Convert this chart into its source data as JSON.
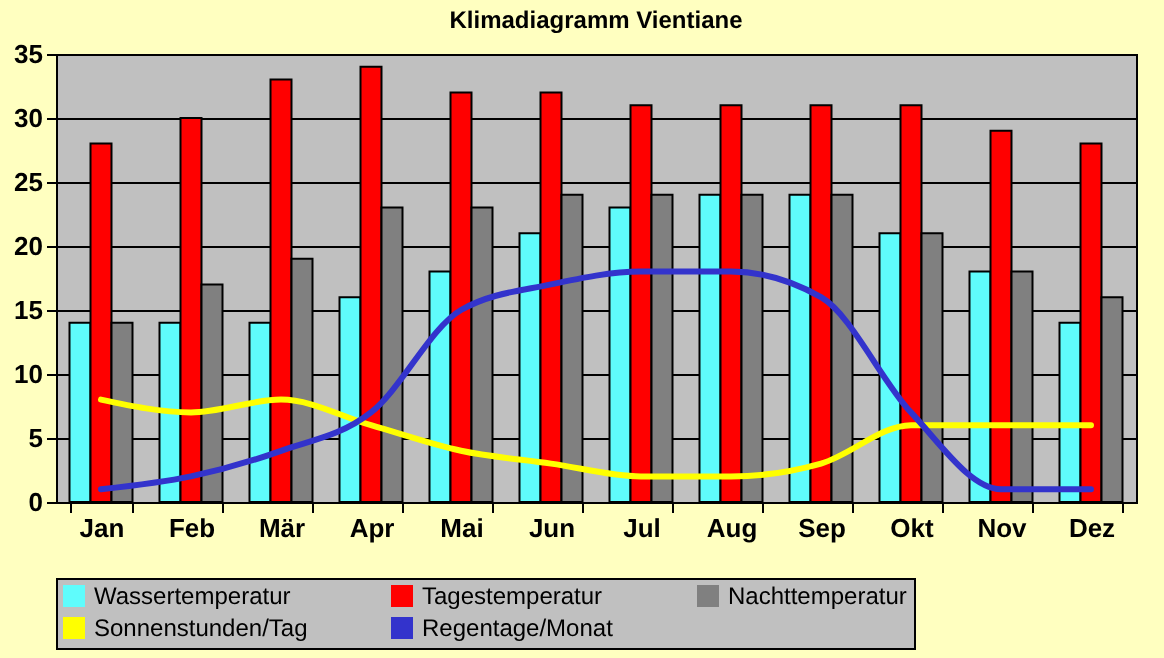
{
  "chart_data": {
    "type": "bar",
    "title": "Klimadiagramm Vientiane",
    "categories": [
      "Jan",
      "Feb",
      "Mär",
      "Apr",
      "Mai",
      "Jun",
      "Jul",
      "Aug",
      "Sep",
      "Okt",
      "Nov",
      "Dez"
    ],
    "series": [
      {
        "name": "Wassertemperatur",
        "color": "#5ffcfc",
        "values": [
          14,
          14,
          14,
          16,
          18,
          21,
          23,
          24,
          24,
          21,
          18,
          14
        ]
      },
      {
        "name": "Tagestemperatur",
        "color": "#ff0000",
        "values": [
          28,
          30,
          33,
          34,
          32,
          32,
          31,
          31,
          31,
          31,
          29,
          28
        ]
      },
      {
        "name": "Nachttemperatur",
        "color": "#808080",
        "values": [
          14,
          17,
          19,
          23,
          23,
          24,
          24,
          24,
          24,
          21,
          18,
          16
        ]
      },
      {
        "name": "Sonnenstunden/Tag",
        "type": "line",
        "color": "#ffff00",
        "values": [
          8,
          7,
          8,
          6,
          4,
          3,
          2,
          2,
          3,
          6,
          6,
          6
        ]
      },
      {
        "name": "Regentage/Monat",
        "type": "line",
        "color": "#3333cc",
        "values": [
          1,
          2,
          4,
          7,
          15,
          17,
          18,
          18,
          16,
          7,
          1,
          1
        ]
      }
    ],
    "ylim": [
      0,
      35
    ],
    "yticks": [
      0,
      5,
      10,
      15,
      20,
      25,
      30,
      35
    ],
    "grid": "y",
    "legend": "bottom"
  }
}
